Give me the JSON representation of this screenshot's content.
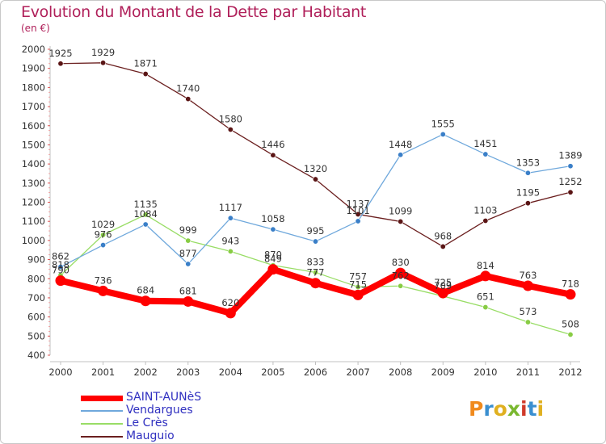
{
  "title": "Evolution du Montant de la Dette par Habitant",
  "subtitle": "(en €)",
  "logo": {
    "text": "Proxiti",
    "letters": [
      {
        "ch": "P",
        "color": "#f08a1c"
      },
      {
        "ch": "r",
        "color": "#3a8fd0"
      },
      {
        "ch": "o",
        "color": "#e0b020"
      },
      {
        "ch": "x",
        "color": "#7ab830"
      },
      {
        "ch": "i",
        "color": "#d03a2a"
      },
      {
        "ch": "t",
        "color": "#3a8fd0"
      },
      {
        "ch": "i",
        "color": "#e0b020"
      }
    ]
  },
  "chart_data": {
    "type": "line",
    "x": [
      "2000",
      "2001",
      "2002",
      "2003",
      "2004",
      "2005",
      "2006",
      "2007",
      "2008",
      "2009",
      "2010",
      "2011",
      "2012"
    ],
    "ylim": [
      400,
      2000
    ],
    "yticks": [
      400,
      500,
      600,
      700,
      800,
      900,
      1000,
      1100,
      1200,
      1300,
      1400,
      1500,
      1600,
      1700,
      1800,
      1900,
      2000
    ],
    "grid": false,
    "legend_position": "bottom-left",
    "series": [
      {
        "name": "Mauguio",
        "color": "#6b1f1f",
        "width": 1.3,
        "values": [
          1925,
          1929,
          1871,
          1740,
          1580,
          1446,
          1320,
          1137,
          1099,
          968,
          1103,
          1195,
          1252
        ]
      },
      {
        "name": "Le Crès",
        "color": "#99dd66",
        "width": 1.3,
        "values": [
          818,
          1029,
          1135,
          999,
          943,
          870,
          833,
          757,
          762,
          709,
          651,
          573,
          508
        ]
      },
      {
        "name": "Vendargues",
        "color": "#6fa8dc",
        "width": 1.3,
        "values": [
          862,
          976,
          1084,
          877,
          1117,
          1058,
          995,
          1101,
          1448,
          1555,
          1451,
          1353,
          1389
        ]
      },
      {
        "name": "SAINT-AUNèS",
        "color": "#ff0000",
        "width": 8,
        "values": [
          790,
          736,
          684,
          681,
          620,
          849,
          777,
          715,
          830,
          725,
          814,
          763,
          718
        ]
      }
    ],
    "data_labels": [
      {
        "series": "Mauguio",
        "labels": [
          "1925",
          "1929",
          "1871",
          "1740",
          "1580",
          "1446",
          "1320",
          "1137",
          "1099",
          "968",
          "1103",
          "1195",
          "1252"
        ]
      },
      {
        "series": "Le Crès",
        "labels": [
          "818",
          "1029",
          "1135",
          "999",
          "943",
          "870",
          "833",
          "757",
          "762",
          "709",
          "651",
          "573",
          "508"
        ]
      },
      {
        "series": "Vendargues",
        "labels": [
          "862",
          "976",
          "1084",
          "877",
          "1117",
          "1058",
          "995",
          "1101",
          "1448",
          "1555",
          "1451",
          "1353",
          "1389"
        ]
      },
      {
        "series": "SAINT-AUNèS",
        "labels": [
          "790",
          "736",
          "684",
          "681",
          "620",
          "849",
          "777",
          "715",
          "830",
          "725",
          "814",
          "763",
          "718"
        ]
      }
    ],
    "legend_order": [
      "SAINT-AUNèS",
      "Vendargues",
      "Le Crès",
      "Mauguio"
    ]
  }
}
